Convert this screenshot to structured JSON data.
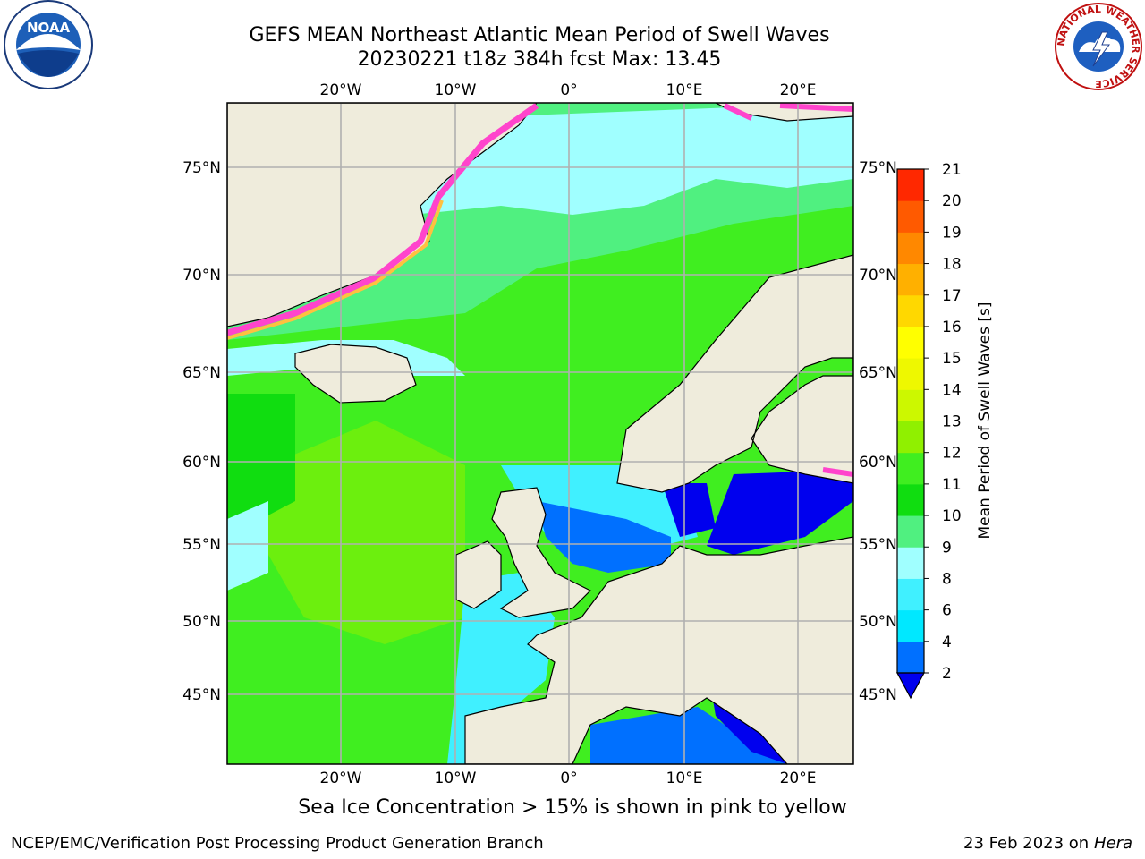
{
  "header": {
    "title_line1": "GEFS MEAN Northeast Atlantic Mean Period of Swell Waves",
    "title_line2": "20230221 t18z 384h fcst   Max: 13.45"
  },
  "logos": {
    "left": "NOAA",
    "right_ring_text": "NATIONAL WEATHER SERVICE"
  },
  "map": {
    "lon_labels": [
      "20°W",
      "10°W",
      "0°",
      "10°E",
      "20°E"
    ],
    "lat_labels": [
      "75°N",
      "70°N",
      "65°N",
      "60°N",
      "55°N",
      "50°N",
      "45°N"
    ]
  },
  "colorbar": {
    "label": "Mean Period of Swell Waves [s]",
    "ticks": [
      "2",
      "4",
      "6",
      "8",
      "9",
      "10",
      "11",
      "12",
      "13",
      "14",
      "15",
      "16",
      "17",
      "18",
      "19",
      "20",
      "21"
    ],
    "colors": [
      "#0070ff",
      "#00e8ff",
      "#40f0ff",
      "#a0ffff",
      "#50f080",
      "#10dd10",
      "#40ee20",
      "#90f000",
      "#ccf800",
      "#eef800",
      "#ffff00",
      "#ffd800",
      "#ffb000",
      "#ff8800",
      "#ff5a00",
      "#ff2800"
    ],
    "under_color": "#0000ee"
  },
  "caption": "Sea Ice Concentration > 15% is shown in pink to yellow",
  "footer": {
    "left": "NCEP/EMC/Verification Post Processing Product Generation Branch",
    "right_date": "23 Feb 2023 on",
    "right_host": "Hera"
  }
}
